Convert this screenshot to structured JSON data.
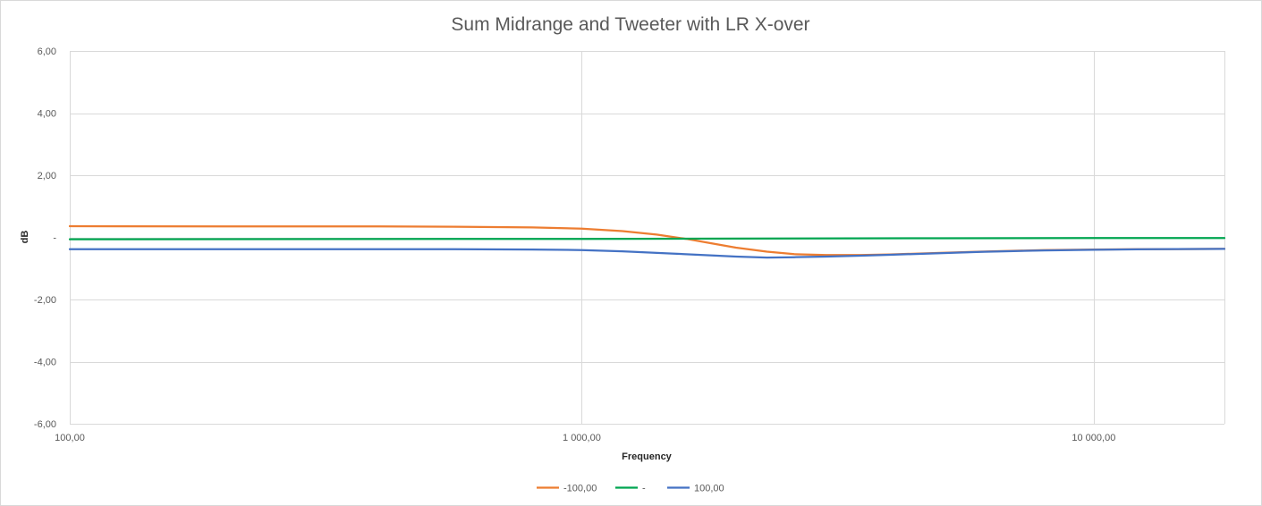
{
  "chart_data": {
    "type": "line",
    "title": "Sum Midrange and Tweeter with LR X-over",
    "xlabel": "Frequency",
    "ylabel": "dB",
    "x_scale": "log",
    "xlim": [
      100,
      18000
    ],
    "ylim": [
      -6,
      6
    ],
    "x_ticks": [
      100,
      1000,
      10000
    ],
    "x_tick_labels": [
      "100,00",
      "1 000,00",
      "10 000,00"
    ],
    "y_ticks": [
      6,
      4,
      2,
      0,
      -2,
      -4,
      -6
    ],
    "y_tick_labels": [
      "6,00",
      "4,00",
      "2,00",
      "-",
      "-2,00",
      "-4,00",
      "-6,00"
    ],
    "grid": true,
    "legend_position": "bottom",
    "series": [
      {
        "name": "-100,00",
        "color": "#ED7D31",
        "x": [
          100,
          200,
          400,
          600,
          800,
          1000,
          1200,
          1400,
          1600,
          1800,
          2000,
          2300,
          2600,
          3000,
          3500,
          4000,
          5000,
          6000,
          8000,
          10000,
          13000,
          18000
        ],
        "y": [
          0.36,
          0.35,
          0.35,
          0.34,
          0.32,
          0.28,
          0.2,
          0.09,
          -0.05,
          -0.2,
          -0.33,
          -0.46,
          -0.54,
          -0.57,
          -0.57,
          -0.55,
          -0.5,
          -0.46,
          -0.41,
          -0.39,
          -0.38,
          -0.37
        ]
      },
      {
        "name": "-",
        "color": "#00A550",
        "x": [
          100,
          1000,
          2000,
          5000,
          10000,
          18000
        ],
        "y": [
          -0.06,
          -0.05,
          -0.04,
          -0.03,
          -0.02,
          -0.02
        ]
      },
      {
        "name": "100,00",
        "color": "#4472C4",
        "x": [
          100,
          500,
          800,
          1000,
          1200,
          1500,
          1800,
          2000,
          2300,
          2600,
          3000,
          3500,
          4000,
          5000,
          6000,
          8000,
          10000,
          13000,
          18000
        ],
        "y": [
          -0.38,
          -0.38,
          -0.39,
          -0.41,
          -0.45,
          -0.52,
          -0.58,
          -0.62,
          -0.65,
          -0.64,
          -0.62,
          -0.59,
          -0.56,
          -0.51,
          -0.47,
          -0.42,
          -0.4,
          -0.38,
          -0.37
        ]
      }
    ]
  }
}
